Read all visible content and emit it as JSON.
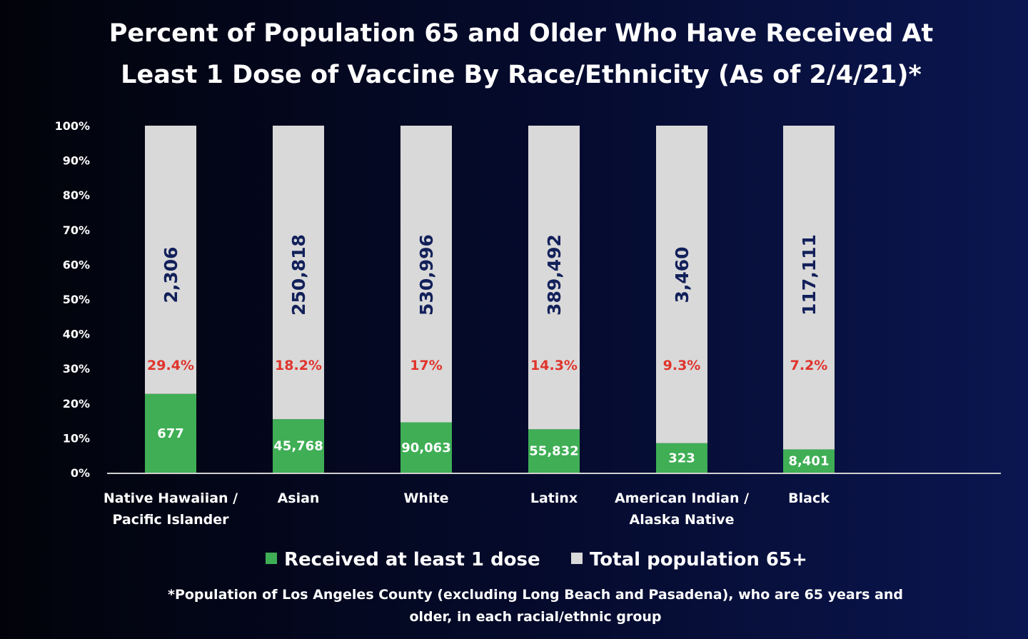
{
  "chart_data": {
    "type": "stacked-bar",
    "title": "Percent of Population 65 and Older Who Have Received At Least 1 Dose of Vaccine By Race/Ethnicity (As of 2/4/21)*",
    "footnote": "*Population of Los Angeles County (excluding Long Beach and Pasadena), who are 65 years and older, in each racial/ethnic group",
    "categories": [
      "Native Hawaiian / Pacific Islander",
      "Asian",
      "White",
      "Latinx",
      "American Indian / Alaska Native",
      "Black"
    ],
    "series": [
      {
        "name": "Received at least 1 dose",
        "color": "#3fae55",
        "values": [
          22.7,
          15.4,
          14.5,
          12.5,
          8.5,
          6.7
        ],
        "count_labels": [
          "677",
          "45,768",
          "90,063",
          "55,832",
          "323",
          "8,401"
        ]
      },
      {
        "name": "Total population 65+",
        "color": "#d9d9d9",
        "values": [
          77.3,
          84.6,
          85.5,
          87.5,
          91.5,
          93.3
        ],
        "count_labels": [
          "2,306",
          "250,818",
          "530,996",
          "389,492",
          "3,460",
          "117,111"
        ]
      }
    ],
    "rate_labels": [
      "29.4%",
      "18.2%",
      "17%",
      "14.3%",
      "9.3%",
      "7.2%"
    ],
    "ylim": [
      0,
      100
    ],
    "yticks": [
      {
        "value": 0,
        "label": "0%"
      },
      {
        "value": 10,
        "label": "10%"
      },
      {
        "value": 20,
        "label": "20%"
      },
      {
        "value": 30,
        "label": "30%"
      },
      {
        "value": 40,
        "label": "40%"
      },
      {
        "value": 50,
        "label": "50%"
      },
      {
        "value": 60,
        "label": "60%"
      },
      {
        "value": 70,
        "label": "70%"
      },
      {
        "value": 80,
        "label": "80%"
      },
      {
        "value": 90,
        "label": "90%"
      },
      {
        "value": 100,
        "label": "100%"
      }
    ]
  }
}
